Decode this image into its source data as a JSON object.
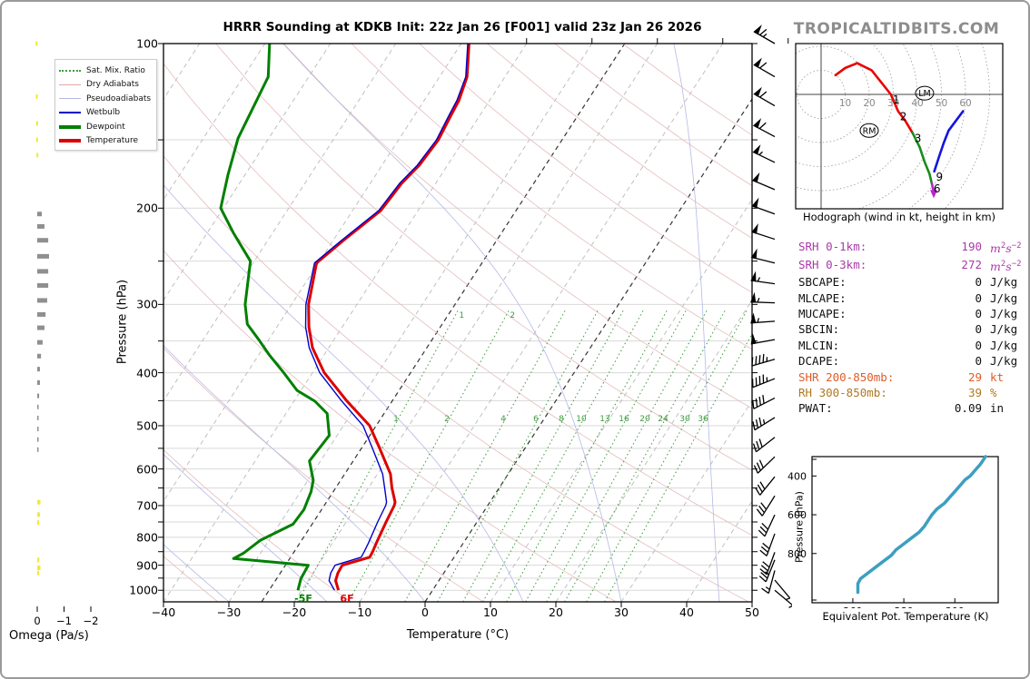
{
  "header": {
    "title": "HRRR Sounding at KDKB Init: 22z Jan 26 [F001] valid 23z Jan 26 2026",
    "watermark": "TROPICALTIDBITS.COM"
  },
  "skewt": {
    "xlabel": "Temperature (°C)",
    "ylabel": "Pressure (hPa)",
    "x_ticks": [
      -40,
      -30,
      -20,
      -10,
      0,
      10,
      20,
      30,
      40,
      50
    ],
    "p_ticks": [
      100,
      200,
      300,
      400,
      500,
      600,
      700,
      800,
      900,
      1000
    ],
    "surface_temp_label": "6F",
    "surface_dewp_label": "-5F",
    "mixing_ratio_values": [
      1,
      2,
      4,
      6,
      8,
      10,
      13,
      16,
      20,
      24,
      30,
      36
    ],
    "legend": [
      {
        "label": "Sat. Mix. Ratio",
        "style": "mixratio"
      },
      {
        "label": "Dry Adiabats",
        "style": "dryad"
      },
      {
        "label": "Pseudoadiabats",
        "style": "pseudo"
      },
      {
        "label": "Wetbulb",
        "style": "wetbulb"
      },
      {
        "label": "Dewpoint",
        "style": "dewpoint"
      },
      {
        "label": "Temperature",
        "style": "temperature"
      }
    ],
    "colors": {
      "temperature": "#dd0000",
      "dewpoint": "#008000",
      "wetbulb": "#0000cc",
      "dry_adiabat": "#e4bcbc",
      "pseudoadiabat": "#b4b9e6",
      "mix_ratio": "#3d9b3d",
      "isotherm": "#b9b9b9",
      "isotherm_dark": "#333333",
      "grid": "#d9d9d9"
    }
  },
  "omega_panel": {
    "xlabel": "Omega (Pa/s)",
    "ticks": [
      0,
      -1,
      -2
    ],
    "bar_colors": {
      "up": "#8f8f8f",
      "down": "#f2e935"
    }
  },
  "stats": [
    {
      "label": "SRH 0-1km:",
      "value": "190",
      "unit": "m2s-2",
      "color": "#a93aa9"
    },
    {
      "label": "SRH 0-3km:",
      "value": "272",
      "unit": "m2s-2",
      "color": "#a93aa9"
    },
    {
      "label": "SBCAPE:",
      "value": "0",
      "unit": "J/kg",
      "color": "#111111"
    },
    {
      "label": "MLCAPE:",
      "value": "0",
      "unit": "J/kg",
      "color": "#111111"
    },
    {
      "label": "MUCAPE:",
      "value": "0",
      "unit": "J/kg",
      "color": "#111111"
    },
    {
      "label": "SBCIN:",
      "value": "0",
      "unit": "J/kg",
      "color": "#111111"
    },
    {
      "label": "MLCIN:",
      "value": "0",
      "unit": "J/kg",
      "color": "#111111"
    },
    {
      "label": "DCAPE:",
      "value": "0",
      "unit": "J/kg",
      "color": "#111111"
    },
    {
      "label": "SHR 200-850mb:",
      "value": "29",
      "unit": "kt",
      "color": "#e05c28"
    },
    {
      "label": "RH 300-850mb:",
      "value": "39",
      "unit": "%",
      "color": "#b07820"
    },
    {
      "label": "PWAT:",
      "value": "0.09",
      "unit": "in",
      "color": "#111111"
    }
  ],
  "hodograph": {
    "caption": "Hodograph (wind in kt, height in km)",
    "ring_step_kt": 10,
    "tick_labels": [
      10,
      20,
      30,
      40,
      50,
      60
    ],
    "markers": [
      {
        "label": "RM",
        "u": 20,
        "v": -15
      },
      {
        "label": "LM",
        "u": 43,
        "v": 0.5
      }
    ]
  },
  "theta_e_panel": {
    "xlabel": "Equivalent Pot. Temperature (K)",
    "ylabel": "Pressure (hPa)",
    "x_ticks": [
      260,
      280,
      300
    ],
    "p_ticks": [
      400,
      600,
      800
    ],
    "color": "#3d9fc0"
  },
  "chart_data": [
    {
      "id": "skewt",
      "type": "line",
      "title": "HRRR Sounding at KDKB Init: 22z Jan 26 [F001] valid 23z Jan 26 2026",
      "xlabel": "Temperature (°C)",
      "ylabel": "Pressure (hPa)",
      "xlim": [
        -40,
        50
      ],
      "plim": [
        100,
        1050
      ],
      "surface_temperature_F": 6,
      "surface_dewpoint_F": -5,
      "series": [
        {
          "name": "Temperature",
          "color": "#dd0000",
          "width": 3,
          "points": [
            [
              1000,
              -14.4
            ],
            [
              960,
              -15.8
            ],
            [
              930,
              -16.2
            ],
            [
              900,
              -16.3
            ],
            [
              870,
              -12.9
            ],
            [
              850,
              -13.0
            ],
            [
              820,
              -13.3
            ],
            [
              750,
              -13.9
            ],
            [
              700,
              -14.3
            ],
            [
              690,
              -14.5
            ],
            [
              650,
              -16.4
            ],
            [
              613,
              -18.0
            ],
            [
              546,
              -22.5
            ],
            [
              500,
              -26.0
            ],
            [
              450,
              -32.0
            ],
            [
              400,
              -38.2
            ],
            [
              360,
              -42.5
            ],
            [
              330,
              -45.1
            ],
            [
              300,
              -47.4
            ],
            [
              252,
              -50.3
            ],
            [
              230,
              -48.5
            ],
            [
              202,
              -45.7
            ],
            [
              180,
              -45.2
            ],
            [
              167,
              -44.3
            ],
            [
              150,
              -43.9
            ],
            [
              136,
              -44.4
            ],
            [
              127,
              -44.7
            ],
            [
              115,
              -45.8
            ],
            [
              100,
              -48.8
            ]
          ]
        },
        {
          "name": "Wetbulb",
          "color": "#0000cc",
          "width": 1.4,
          "points": [
            [
              1000,
              -15.0
            ],
            [
              960,
              -16.8
            ],
            [
              930,
              -17.3
            ],
            [
              900,
              -17.4
            ],
            [
              870,
              -14.2
            ],
            [
              850,
              -14.3
            ],
            [
              820,
              -14.5
            ],
            [
              750,
              -15.2
            ],
            [
              700,
              -15.6
            ],
            [
              690,
              -15.8
            ],
            [
              650,
              -17.5
            ],
            [
              613,
              -19.2
            ],
            [
              546,
              -23.6
            ],
            [
              500,
              -27.0
            ],
            [
              450,
              -32.8
            ],
            [
              400,
              -38.9
            ],
            [
              360,
              -43.0
            ],
            [
              330,
              -45.6
            ],
            [
              300,
              -47.8
            ],
            [
              252,
              -50.6
            ],
            [
              230,
              -48.8
            ],
            [
              202,
              -46.0
            ],
            [
              180,
              -45.5
            ],
            [
              167,
              -44.6
            ],
            [
              150,
              -44.2
            ],
            [
              136,
              -44.7
            ],
            [
              127,
              -45.0
            ],
            [
              115,
              -46.0
            ],
            [
              100,
              -49.0
            ]
          ]
        },
        {
          "name": "Dewpoint",
          "color": "#008000",
          "width": 3,
          "points": [
            [
              1000,
              -20.6
            ],
            [
              952,
              -21.3
            ],
            [
              900,
              -21.5
            ],
            [
              875,
              -33.6
            ],
            [
              855,
              -32.6
            ],
            [
              810,
              -31.3
            ],
            [
              757,
              -27.9
            ],
            [
              712,
              -27.7
            ],
            [
              660,
              -28.4
            ],
            [
              629,
              -29.2
            ],
            [
              580,
              -31.7
            ],
            [
              521,
              -31.2
            ],
            [
              475,
              -33.7
            ],
            [
              451,
              -36.8
            ],
            [
              431,
              -40.6
            ],
            [
              400,
              -44.4
            ],
            [
              371,
              -48.4
            ],
            [
              348,
              -51.5
            ],
            [
              326,
              -54.8
            ],
            [
              300,
              -57.1
            ],
            [
              250,
              -60.6
            ],
            [
              222,
              -66.0
            ],
            [
              200,
              -70.4
            ],
            [
              174,
              -72.6
            ],
            [
              149,
              -74.7
            ],
            [
              115,
              -76.2
            ],
            [
              100,
              -79.3
            ]
          ]
        }
      ]
    },
    {
      "id": "hodograph",
      "type": "line",
      "caption": "Hodograph (wind in kt, height in km)",
      "units": "kt",
      "rings": [
        10,
        20,
        30,
        40,
        50,
        60,
        70
      ],
      "segments": [
        {
          "color": "#e80000",
          "km": "0-3",
          "points": [
            [
              6,
              8
            ],
            [
              10,
              11
            ],
            [
              15,
              13
            ],
            [
              21,
              10
            ],
            [
              25,
              5
            ],
            [
              29,
              0
            ],
            [
              32,
              -7
            ],
            [
              35,
              -11
            ],
            [
              38,
              -16
            ]
          ]
        },
        {
          "color": "#1a8c1a",
          "km": "3-6",
          "points": [
            [
              38,
              -16
            ],
            [
              41,
              -22
            ],
            [
              43,
              -28
            ],
            [
              45,
              -33
            ],
            [
              46,
              -37
            ]
          ]
        },
        {
          "color": "#bb22cc",
          "km": "6-9",
          "points": [
            [
              46,
              -37
            ],
            [
              46.8,
              -40.5
            ]
          ],
          "arrow": true
        },
        {
          "color": "#1414e0",
          "km": "9-12",
          "points": [
            [
              47,
              -32
            ],
            [
              49,
              -26
            ],
            [
              51,
              -20
            ],
            [
              53,
              -15
            ],
            [
              59,
              -7
            ]
          ]
        }
      ],
      "height_labels": [
        {
          "km": "1",
          "u": 29,
          "v": 0
        },
        {
          "km": "2",
          "u": 32,
          "v": -7
        },
        {
          "km": "3",
          "u": 38,
          "v": -16
        },
        {
          "km": "6",
          "u": 46,
          "v": -37
        },
        {
          "km": "9",
          "u": 47,
          "v": -32
        }
      ],
      "markers": [
        {
          "label": "RM",
          "u": 20,
          "v": -15
        },
        {
          "label": "LM",
          "u": 43,
          "v": 0.5
        }
      ]
    },
    {
      "id": "theta_e",
      "type": "line",
      "xlabel": "Equivalent Pot. Temperature (K)",
      "ylabel": "Pressure (hPa)",
      "xlim": [
        244,
        317
      ],
      "plim": [
        300,
        1055
      ],
      "points": [
        [
          262,
          1000
        ],
        [
          262,
          955
        ],
        [
          263,
          930
        ],
        [
          266,
          900
        ],
        [
          269,
          870
        ],
        [
          272,
          840
        ],
        [
          275,
          810
        ],
        [
          277,
          780
        ],
        [
          280,
          750
        ],
        [
          283,
          720
        ],
        [
          286,
          690
        ],
        [
          288,
          660
        ],
        [
          289,
          640
        ],
        [
          290,
          620
        ],
        [
          291,
          600
        ],
        [
          293,
          570
        ],
        [
          296,
          540
        ],
        [
          298,
          510
        ],
        [
          300,
          480
        ],
        [
          302,
          450
        ],
        [
          304,
          420
        ],
        [
          306,
          400
        ],
        [
          308,
          370
        ],
        [
          310,
          340
        ],
        [
          311,
          320
        ],
        [
          312,
          300
        ]
      ]
    },
    {
      "id": "omega",
      "type": "bar",
      "xlabel": "Omega (Pa/s)",
      "xticks": [
        0,
        -1,
        -2
      ],
      "bars_up": [
        [
          205,
          -0.17
        ],
        [
          216,
          -0.27
        ],
        [
          229,
          -0.41
        ],
        [
          245,
          -0.44
        ],
        [
          261,
          -0.41
        ],
        [
          277,
          -0.41
        ],
        [
          295,
          -0.37
        ],
        [
          313,
          -0.31
        ],
        [
          331,
          -0.27
        ],
        [
          352,
          -0.2
        ],
        [
          373,
          -0.14
        ],
        [
          394,
          -0.1
        ],
        [
          417,
          -0.1
        ],
        [
          441,
          -0.07
        ],
        [
          462,
          -0.05
        ],
        [
          484,
          -0.04
        ],
        [
          507,
          -0.04
        ],
        [
          530,
          -0.03
        ],
        [
          553,
          -0.03
        ]
      ],
      "bars_down": [
        [
          100,
          0.06
        ],
        [
          125,
          0.05
        ],
        [
          140,
          0.04
        ],
        [
          150,
          0.04
        ],
        [
          160,
          0.03
        ],
        [
          690,
          -0.12
        ],
        [
          727,
          -0.1
        ],
        [
          752,
          -0.06
        ],
        [
          880,
          -0.08
        ],
        [
          910,
          -0.12
        ],
        [
          930,
          -0.06
        ]
      ]
    },
    {
      "id": "wind_barbs",
      "type": "barbs",
      "units": "kt",
      "barbs": [
        [
          100,
          65,
          300
        ],
        [
          115,
          60,
          300
        ],
        [
          130,
          60,
          300
        ],
        [
          148,
          60,
          298
        ],
        [
          165,
          55,
          296
        ],
        [
          185,
          50,
          293
        ],
        [
          205,
          50,
          290
        ],
        [
          228,
          50,
          288
        ],
        [
          252,
          50,
          284
        ],
        [
          275,
          55,
          278
        ],
        [
          298,
          55,
          272
        ],
        [
          322,
          55,
          266
        ],
        [
          348,
          50,
          260
        ],
        [
          378,
          45,
          254
        ],
        [
          410,
          45,
          248
        ],
        [
          445,
          40,
          243
        ],
        [
          483,
          35,
          238
        ],
        [
          525,
          30,
          232
        ],
        [
          570,
          30,
          226
        ],
        [
          620,
          30,
          219
        ],
        [
          672,
          30,
          212
        ],
        [
          728,
          30,
          205
        ],
        [
          788,
          28,
          200
        ],
        [
          852,
          28,
          200
        ],
        [
          880,
          25,
          202
        ],
        [
          920,
          15,
          195
        ],
        [
          958,
          7,
          140
        ],
        [
          1000,
          5,
          130
        ]
      ]
    }
  ]
}
